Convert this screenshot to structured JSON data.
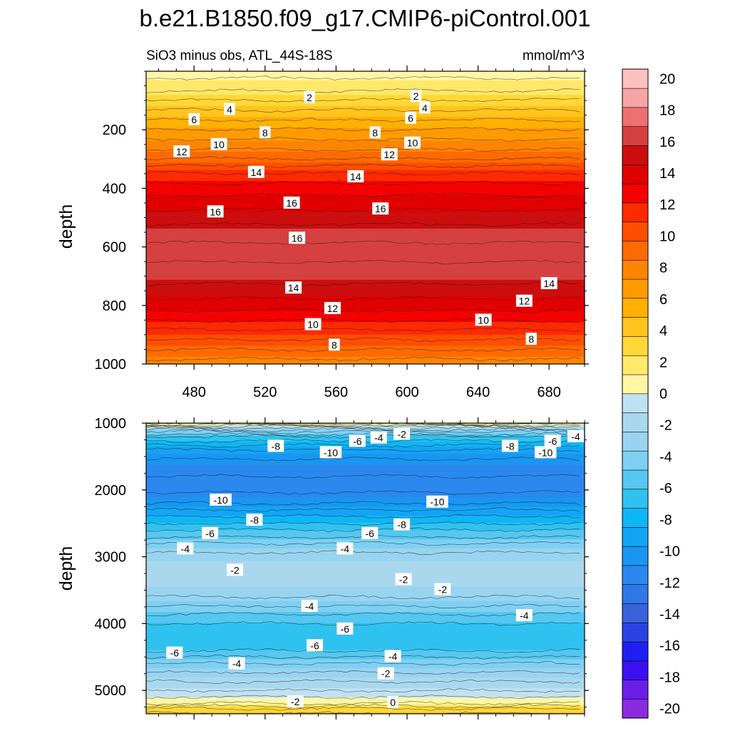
{
  "chart_data": {
    "type": "heatmap",
    "title": "b.e21.B1850.f09_g17.CMIP6-piControl.001",
    "subtitle": "SiO3 minus obs, ATL_44S-18S",
    "units": "mmol/m^3",
    "colorbar": {
      "levels": [
        -20,
        -18,
        -16,
        -14,
        -12,
        -10,
        -8,
        -6,
        -4,
        -2,
        0,
        2,
        4,
        6,
        8,
        10,
        12,
        14,
        16,
        18,
        20
      ],
      "tick_labels": [
        "-20",
        "-18",
        "-16",
        "-14",
        "-12",
        "-10",
        "-8",
        "-6",
        "-4",
        "-2",
        "0",
        "2",
        "4",
        "6",
        "8",
        "10",
        "12",
        "14",
        "16",
        "18",
        "20"
      ],
      "colors_low_to_high": [
        "#8a2be2",
        "#6a1ee8",
        "#3c10f0",
        "#1f1ff5",
        "#2b43e6",
        "#3a62da",
        "#2f78e8",
        "#2a88ef",
        "#1896f2",
        "#14a4f5",
        "#0fb6f4",
        "#2fc2f0",
        "#55c7f0",
        "#7ed0f2",
        "#98d4ef",
        "#a9d8ee",
        "#bfe2f2",
        "#fff6a6",
        "#ffe86a",
        "#ffd838",
        "#ffc41e",
        "#ffb000",
        "#ff9a00",
        "#ff8400",
        "#ff6a00",
        "#ff4e00",
        "#ff2a00",
        "#f40000",
        "#e00000",
        "#cc0e0e",
        "#d64040",
        "#ee7070",
        "#f8a4a4",
        "#ffc0c0"
      ]
    },
    "panels": [
      {
        "name": "upper",
        "ylabel": "depth",
        "x_ticks": [
          480,
          520,
          560,
          600,
          640,
          680
        ],
        "x_tick_labels": [
          "480",
          "520",
          "560",
          "600",
          "640",
          "680"
        ],
        "x_range": [
          453,
          700
        ],
        "y_ticks": [
          200,
          400,
          600,
          800,
          1000
        ],
        "y_tick_labels": [
          "200",
          "400",
          "600",
          "800",
          "1000"
        ],
        "y_range": [
          0,
          1000
        ],
        "depth_profile": {
          "depth": [
            0,
            50,
            100,
            150,
            200,
            250,
            300,
            350,
            400,
            450,
            500,
            550,
            600,
            650,
            700,
            750,
            800,
            850,
            900,
            950,
            1000
          ],
          "value": [
            0.5,
            1.5,
            3,
            4.5,
            6,
            7.5,
            9,
            11,
            12.5,
            13.5,
            14.5,
            15.5,
            16.2,
            16,
            15.5,
            14.5,
            13.5,
            12,
            10.5,
            9,
            7.5
          ]
        },
        "contour_labels": [
          {
            "text": "2",
            "x": 545,
            "y": 90
          },
          {
            "text": "2",
            "x": 605,
            "y": 85
          },
          {
            "text": "4",
            "x": 500,
            "y": 130
          },
          {
            "text": "4",
            "x": 610,
            "y": 125
          },
          {
            "text": "6",
            "x": 480,
            "y": 165
          },
          {
            "text": "6",
            "x": 602,
            "y": 160
          },
          {
            "text": "8",
            "x": 520,
            "y": 210
          },
          {
            "text": "8",
            "x": 582,
            "y": 210
          },
          {
            "text": "10",
            "x": 494,
            "y": 250
          },
          {
            "text": "10",
            "x": 603,
            "y": 245
          },
          {
            "text": "12",
            "x": 473,
            "y": 275
          },
          {
            "text": "12",
            "x": 590,
            "y": 285
          },
          {
            "text": "14",
            "x": 515,
            "y": 345
          },
          {
            "text": "14",
            "x": 571,
            "y": 360
          },
          {
            "text": "16",
            "x": 492,
            "y": 480
          },
          {
            "text": "16",
            "x": 535,
            "y": 450
          },
          {
            "text": "16",
            "x": 585,
            "y": 470
          },
          {
            "text": "16",
            "x": 538,
            "y": 570
          },
          {
            "text": "14",
            "x": 536,
            "y": 740
          },
          {
            "text": "14",
            "x": 680,
            "y": 725
          },
          {
            "text": "12",
            "x": 558,
            "y": 810
          },
          {
            "text": "12",
            "x": 666,
            "y": 785
          },
          {
            "text": "10",
            "x": 547,
            "y": 865
          },
          {
            "text": "10",
            "x": 643,
            "y": 850
          },
          {
            "text": "8",
            "x": 559,
            "y": 935
          },
          {
            "text": "8",
            "x": 670,
            "y": 915
          }
        ]
      },
      {
        "name": "lower",
        "ylabel": "depth",
        "y_ticks": [
          1000,
          2000,
          3000,
          4000,
          5000
        ],
        "y_tick_labels": [
          "1000",
          "2000",
          "3000",
          "4000",
          "5000"
        ],
        "y_range": [
          1000,
          5350
        ],
        "x_range": [
          453,
          700
        ],
        "depth_profile": {
          "depth": [
            1000,
            1050,
            1100,
            1200,
            1400,
            1600,
            1800,
            2000,
            2200,
            2400,
            2600,
            2800,
            3000,
            3200,
            3400,
            3600,
            3800,
            4000,
            4200,
            4400,
            4600,
            4800,
            5000,
            5200,
            5280,
            5350
          ],
          "value": [
            2,
            -1,
            -3,
            -6,
            -9,
            -10.5,
            -11,
            -11.2,
            -10,
            -8,
            -6,
            -4,
            -2.5,
            -2,
            -2.2,
            -3,
            -4.5,
            -6,
            -6.8,
            -6,
            -4,
            -2.5,
            -1,
            1,
            3,
            4
          ]
        },
        "contour_labels": [
          {
            "text": "-2",
            "x": 597,
            "y": 1165
          },
          {
            "text": "-4",
            "x": 584,
            "y": 1220
          },
          {
            "text": "-6",
            "x": 572,
            "y": 1270
          },
          {
            "text": "-8",
            "x": 526,
            "y": 1345
          },
          {
            "text": "-10",
            "x": 557,
            "y": 1440
          },
          {
            "text": "-8",
            "x": 658,
            "y": 1345
          },
          {
            "text": "-10",
            "x": 678,
            "y": 1440
          },
          {
            "text": "-6",
            "x": 682,
            "y": 1270
          },
          {
            "text": "-4",
            "x": 695,
            "y": 1200
          },
          {
            "text": "-10",
            "x": 495,
            "y": 2150
          },
          {
            "text": "-10",
            "x": 617,
            "y": 2180
          },
          {
            "text": "-8",
            "x": 514,
            "y": 2450
          },
          {
            "text": "-8",
            "x": 597,
            "y": 2520
          },
          {
            "text": "-6",
            "x": 489,
            "y": 2650
          },
          {
            "text": "-6",
            "x": 579,
            "y": 2650
          },
          {
            "text": "-4",
            "x": 475,
            "y": 2880
          },
          {
            "text": "-4",
            "x": 565,
            "y": 2880
          },
          {
            "text": "-2",
            "x": 503,
            "y": 3200
          },
          {
            "text": "-2",
            "x": 598,
            "y": 3340
          },
          {
            "text": "-2",
            "x": 620,
            "y": 3490
          },
          {
            "text": "-4",
            "x": 545,
            "y": 3740
          },
          {
            "text": "-4",
            "x": 666,
            "y": 3880
          },
          {
            "text": "-6",
            "x": 565,
            "y": 4080
          },
          {
            "text": "-6",
            "x": 548,
            "y": 4330
          },
          {
            "text": "-6",
            "x": 469,
            "y": 4440
          },
          {
            "text": "-4",
            "x": 504,
            "y": 4600
          },
          {
            "text": "-4",
            "x": 592,
            "y": 4490
          },
          {
            "text": "-2",
            "x": 588,
            "y": 4750
          },
          {
            "text": "-2",
            "x": 537,
            "y": 5170
          },
          {
            "text": "0",
            "x": 592,
            "y": 5180
          }
        ]
      }
    ]
  }
}
